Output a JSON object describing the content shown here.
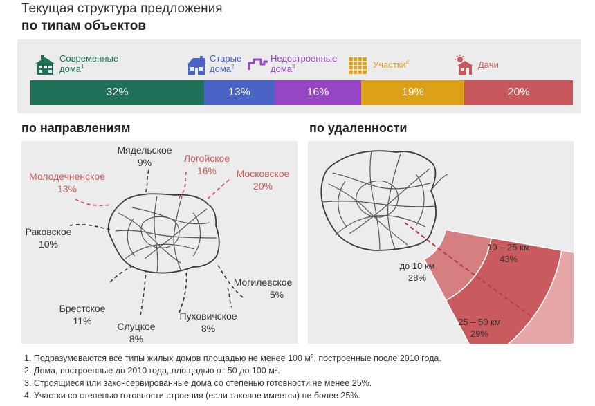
{
  "header": {
    "title_line1": "Текущая структура предложения",
    "title_line2": "по типам объектов"
  },
  "colors": {
    "modern": "#1e7158",
    "old": "#4a63c6",
    "unfinished": "#9646c4",
    "plots": "#dca117",
    "dachas": "#c8585b",
    "highlight": "#c95a5a"
  },
  "chart_data": [
    {
      "type": "bar",
      "title": "по типам объектов",
      "stacked": true,
      "categories": [
        "Современные дома",
        "Старые дома",
        "Недостроенные дома",
        "Участки",
        "Дачи"
      ],
      "values": [
        32,
        13,
        16,
        19,
        20
      ],
      "value_labels": [
        "32%",
        "13%",
        "16%",
        "19%",
        "20%"
      ],
      "footnote_marks": [
        "1",
        "2",
        "3",
        "4",
        ""
      ]
    },
    {
      "type": "table",
      "title": "по направлениям",
      "categories": [
        "Мядельское",
        "Логойское",
        "Молодечненское",
        "Московское",
        "Раковское",
        "Могилевское",
        "Брестское",
        "Пуховичское",
        "Слуцкое"
      ],
      "values": [
        9,
        16,
        13,
        20,
        10,
        5,
        11,
        8,
        8
      ],
      "value_labels": [
        "9%",
        "16%",
        "13%",
        "20%",
        "10%",
        "5%",
        "11%",
        "8%",
        "8%"
      ],
      "highlighted": [
        "Логойское",
        "Молодечненское",
        "Московское"
      ]
    },
    {
      "type": "pie",
      "title": "по удаленности",
      "categories": [
        "до 10 км",
        "10 – 25 км",
        "25 – 50 км"
      ],
      "values": [
        28,
        43,
        29
      ],
      "value_labels": [
        "28%",
        "43%",
        "29%"
      ]
    }
  ],
  "types": {
    "modern": {
      "line1": "Современные",
      "line2": "дома",
      "mark": "1",
      "icon": "modern-house-icon"
    },
    "old": {
      "line1": "Старые",
      "line2": "дома",
      "mark": "2",
      "icon": "old-house-icon"
    },
    "unfinished": {
      "line1": "Недостроенные",
      "line2": "дома",
      "mark": "3",
      "icon": "unfinished-house-icon"
    },
    "plots": {
      "line1": "Участки",
      "mark": "4",
      "icon": "plot-icon"
    },
    "dachas": {
      "line1": "Дачи",
      "icon": "dacha-icon"
    }
  },
  "sections": {
    "directions": "по направлениям",
    "distance": "по удаленности"
  },
  "footnotes": {
    "n1_pre": "1. Подразумеваются все типы жилых домов площадью не менее 100 м",
    "n1_sup": "2",
    "n1_post": ", построенные после 2010 года.",
    "n2_pre": "2. Дома, построенные до 2010 года, площадью от 50 до 100 м",
    "n2_sup": "2",
    "n2_post": ".",
    "n3": "3. Строящиеся или законсервированные дома со степенью готовности не менее 25%.",
    "n4": "4. Участки со степенью готовности строения (если таковое имеется) не более 25%."
  }
}
